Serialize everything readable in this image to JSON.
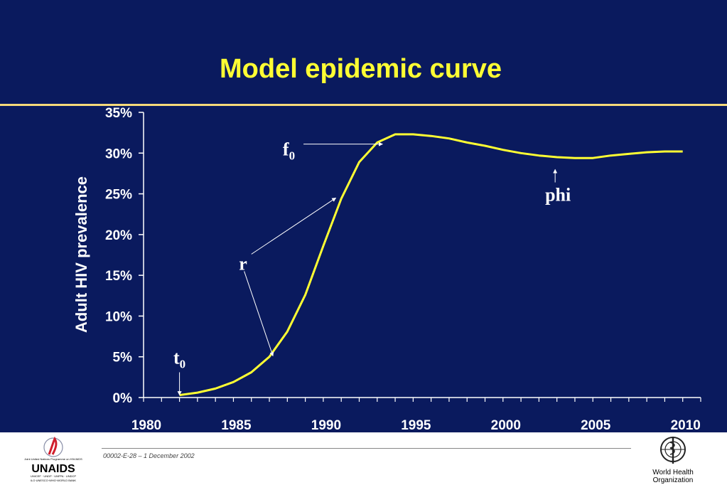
{
  "slide": {
    "title": "Model epidemic curve",
    "footer_code": "00002-E-28 – 1 December 2002",
    "logos": {
      "left": {
        "name": "UNAIDS",
        "text": "UNAIDS",
        "line1": "Joint United Nations Programme on HIV/AIDS",
        "line2": "UNICEF · UNDP · UNFPA · UNDCP",
        "line3": "ILO·UNESCO·WHO·WORLD BANK"
      },
      "right": {
        "name": "World Health Organization",
        "line1": "World Health",
        "line2": "Organization"
      }
    },
    "colors": {
      "background": "#0a1a5e",
      "title": "#ffff33",
      "curve": "#ffff33",
      "axis": "#ffffff",
      "rule": "#f5d97a"
    }
  },
  "chart_data": {
    "type": "line",
    "title": "Model epidemic curve",
    "xlabel": "",
    "ylabel": "Adult HIV prevalence",
    "xlim": [
      1980,
      2011
    ],
    "ylim": [
      0,
      35
    ],
    "x_ticks": [
      1980,
      1985,
      1990,
      1995,
      2000,
      2005,
      2010
    ],
    "x_tick_labels": [
      "1980",
      "1985",
      "1990",
      "1995",
      "2000",
      "2005",
      "2010"
    ],
    "y_ticks": [
      0,
      5,
      10,
      15,
      20,
      25,
      30,
      35
    ],
    "y_tick_labels": [
      "0%",
      "5%",
      "10%",
      "15%",
      "20%",
      "25%",
      "30%",
      "35%"
    ],
    "grid": false,
    "series": [
      {
        "x": [
          1982,
          1983,
          1984,
          1985,
          1986,
          1987,
          1988,
          1989,
          1990,
          1991,
          1992,
          1993,
          1994,
          1995,
          1996,
          1997,
          1998,
          1999,
          2000,
          2001,
          2002,
          2003,
          2004,
          2005,
          2006,
          2007,
          2008,
          2009,
          2010
        ],
        "values": [
          0.3,
          0.6,
          1.1,
          1.9,
          3.1,
          5.0,
          8.1,
          12.6,
          18.6,
          24.4,
          28.9,
          31.3,
          32.3,
          32.3,
          32.1,
          31.8,
          31.3,
          30.9,
          30.4,
          30.0,
          29.7,
          29.5,
          29.4,
          29.4,
          29.7,
          29.9,
          30.1,
          30.2,
          30.2
        ]
      }
    ],
    "annotations": [
      {
        "label": "t",
        "subscript": "0",
        "from": [
          1982,
          3.1
        ],
        "to": [
          1982,
          0.3
        ]
      },
      {
        "label": "r",
        "subscript": "",
        "from": [
          1986,
          17.6
        ],
        "to": [
          1990.7,
          24.5
        ]
      },
      {
        "label": "",
        "subscript": "",
        "from": [
          1985.6,
          15.5
        ],
        "to": [
          1987.2,
          5.1
        ]
      },
      {
        "label": "f",
        "subscript": "0",
        "from": [
          1988.9,
          31.1
        ],
        "to": [
          1993.3,
          31.1
        ]
      },
      {
        "label": "phi",
        "subscript": "",
        "from": [
          2002.9,
          26.4
        ],
        "to": [
          2002.9,
          28.0
        ]
      }
    ]
  }
}
